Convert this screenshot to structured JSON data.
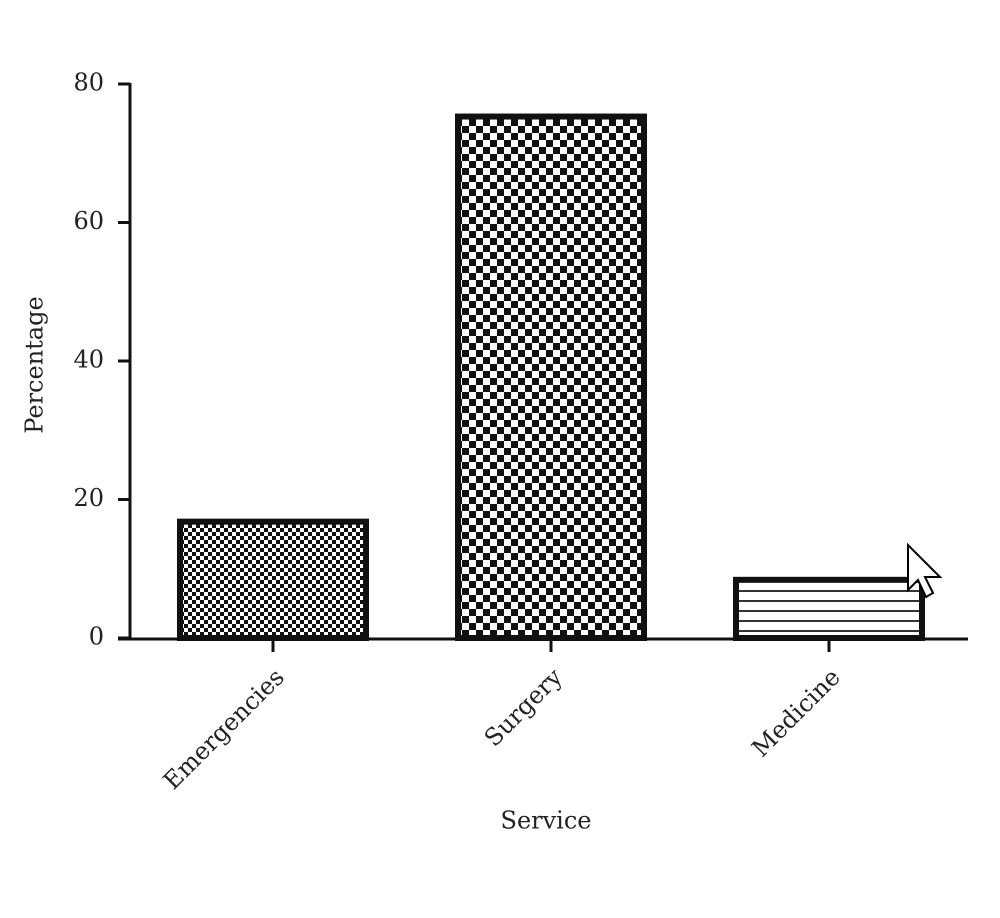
{
  "chart_data": {
    "type": "bar",
    "x_label": "Service",
    "y_label": "Percentage",
    "categories": [
      "Emergencies",
      "Surgery",
      "Medicine"
    ],
    "values": [
      16.8,
      75.3,
      8.4
    ],
    "ylim": [
      0,
      80
    ],
    "yticks": [
      0,
      20,
      40,
      60,
      80
    ],
    "grid": false
  }
}
